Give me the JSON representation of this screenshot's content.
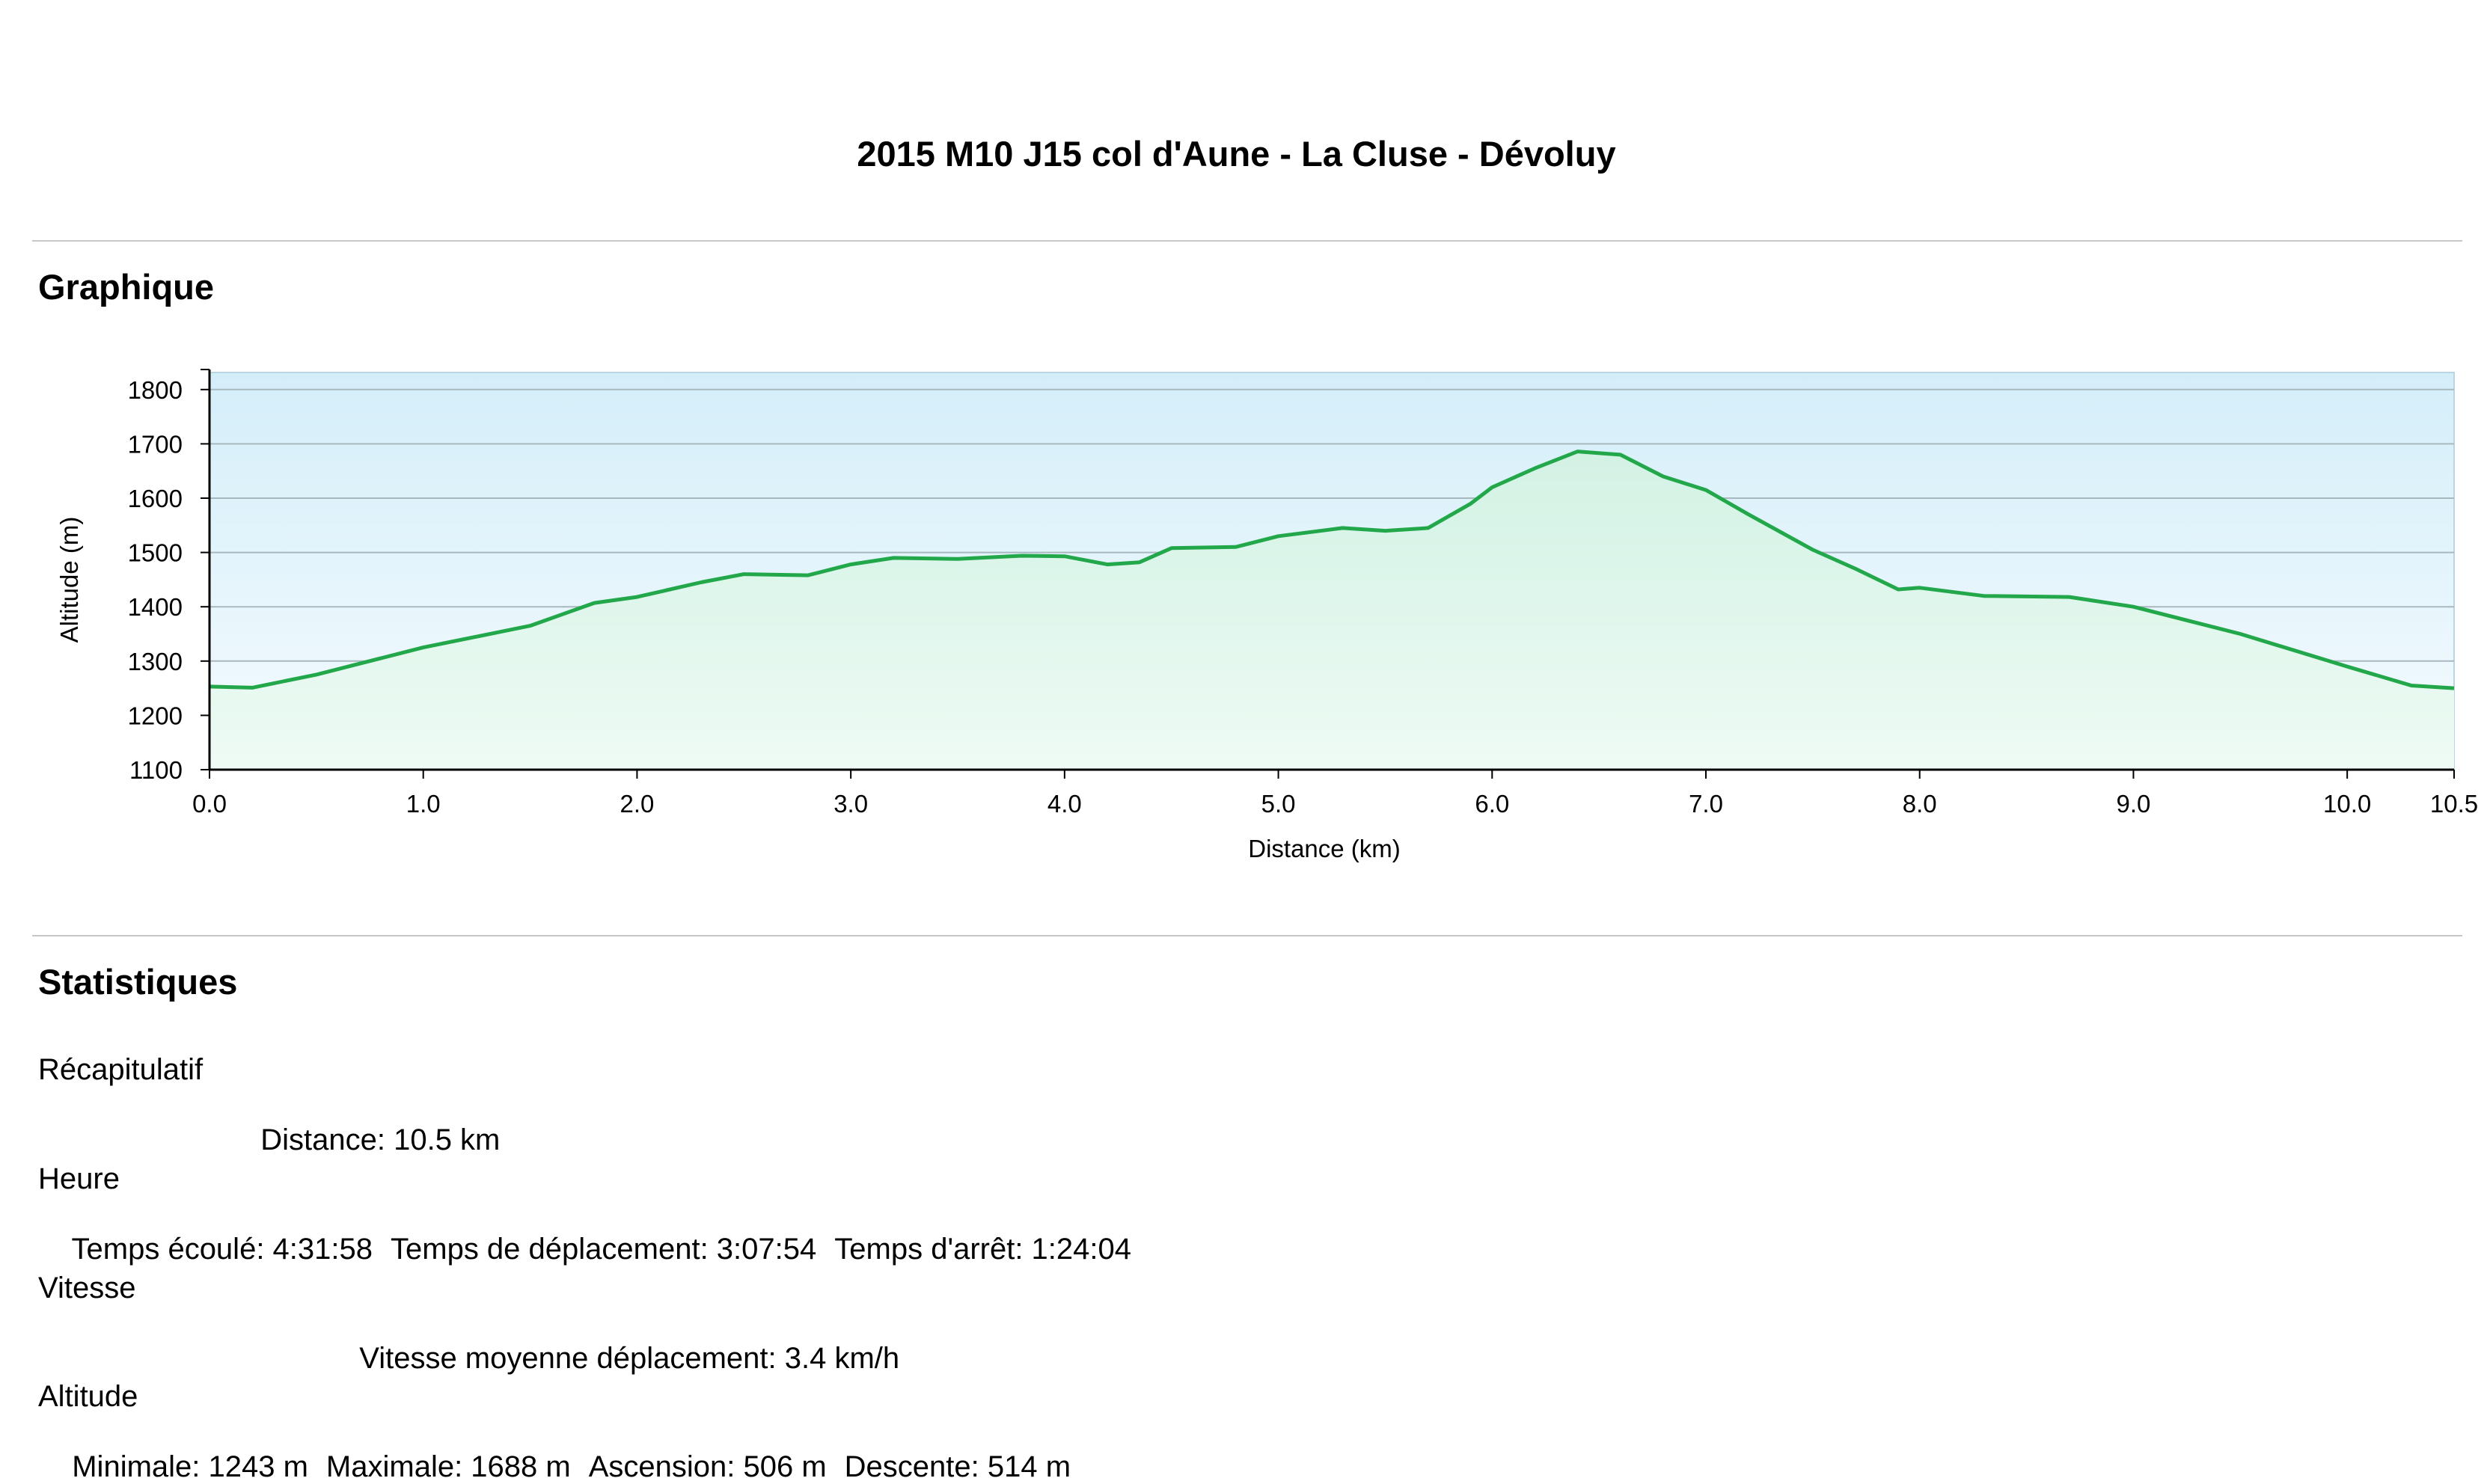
{
  "page": {
    "title": "2015 M10 J15 col d'Aune - La Cluse - Dévoluy"
  },
  "sections": {
    "graph_title": "Graphique",
    "stats_title": "Statistiques"
  },
  "chart_data": {
    "type": "area",
    "xlabel": "Distance   (km)",
    "ylabel": "Altitude (m)",
    "xlim": [
      0,
      10.5
    ],
    "ylim": [
      1100,
      1800
    ],
    "y_ticks": [
      1100,
      1200,
      1300,
      1400,
      1500,
      1600,
      1700,
      1800
    ],
    "x_ticks": [
      "0.0",
      "1.0",
      "2.0",
      "3.0",
      "4.0",
      "5.0",
      "6.0",
      "7.0",
      "8.0",
      "9.0",
      "10.0",
      "10.5"
    ],
    "grid": true,
    "colors": {
      "line": "#22a84a",
      "fill_top": "#d2f2e4",
      "fill_bottom": "#eefbf4",
      "bg_top": "#d4eef9",
      "bg_bottom": "#f5fbfe"
    },
    "x": [
      0,
      0.2,
      0.5,
      1.0,
      1.5,
      1.8,
      2.0,
      2.3,
      2.5,
      2.8,
      3.0,
      3.2,
      3.5,
      3.8,
      4.0,
      4.2,
      4.35,
      4.5,
      4.8,
      5.0,
      5.3,
      5.5,
      5.7,
      5.9,
      6.0,
      6.2,
      6.4,
      6.6,
      6.8,
      7.0,
      7.2,
      7.5,
      7.7,
      7.9,
      8.0,
      8.3,
      8.7,
      9.0,
      9.5,
      10.0,
      10.3,
      10.5
    ],
    "y": [
      1253,
      1251,
      1275,
      1325,
      1365,
      1407,
      1418,
      1445,
      1460,
      1458,
      1478,
      1490,
      1488,
      1494,
      1493,
      1478,
      1482,
      1508,
      1510,
      1530,
      1545,
      1540,
      1545,
      1590,
      1620,
      1655,
      1686,
      1680,
      1640,
      1615,
      1570,
      1505,
      1470,
      1432,
      1435,
      1420,
      1418,
      1400,
      1350,
      1290,
      1255,
      1250
    ]
  },
  "stats": {
    "recap": {
      "label": "Récapitulatif",
      "distance": "Distance: 10.5 km"
    },
    "time": {
      "label": "Heure",
      "elapsed": "Temps écoulé: 4:31:58",
      "moving": "Temps de déplacement: 3:07:54",
      "stopped": "Temps d'arrêt: 1:24:04"
    },
    "speed": {
      "label": "Vitesse",
      "moving_avg": "Vitesse moyenne déplacement: 3.4 km/h"
    },
    "altitude": {
      "label": "Altitude",
      "min": "Minimale: 1243 m",
      "max": "Maximale: 1688 m",
      "ascent": "Ascension: 506 m",
      "descent": "Descente: 514 m"
    }
  }
}
